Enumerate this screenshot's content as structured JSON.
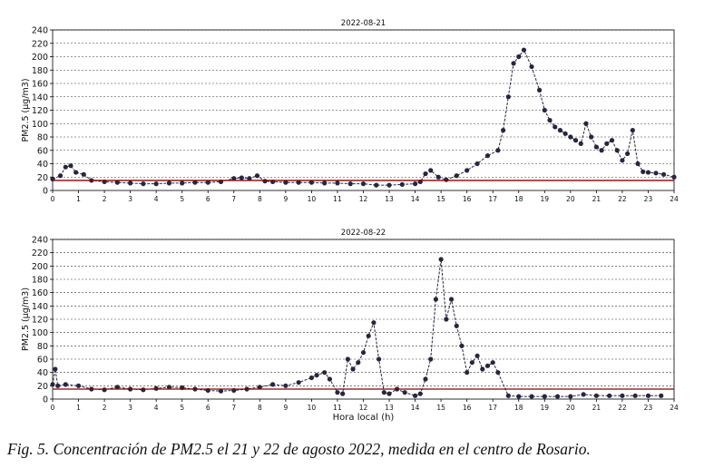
{
  "caption": "Fig. 5. Concentración de PM2.5 el 21 y 22 de agosto 2022, medida en el centro de Rosario.",
  "chart_data": [
    {
      "type": "line",
      "title": "2022-08-21",
      "xlabel": "Hora local (h)",
      "ylabel": "PM2.5 (µg/m3)",
      "xlim": [
        0,
        24
      ],
      "ylim": [
        0,
        240
      ],
      "xticks": [
        0,
        1,
        2,
        3,
        4,
        5,
        6,
        7,
        8,
        9,
        10,
        11,
        12,
        13,
        14,
        15,
        16,
        17,
        18,
        19,
        20,
        21,
        22,
        23,
        24
      ],
      "yticks": [
        0,
        20,
        40,
        60,
        80,
        100,
        120,
        140,
        160,
        180,
        200,
        220,
        240
      ],
      "grid": "horizontal dashed",
      "reference_line": 15,
      "series_color": "#262640",
      "reference_color": "#8b0000",
      "x": [
        0,
        0.3,
        0.5,
        0.7,
        0.9,
        1.2,
        1.5,
        2,
        2.5,
        3,
        3.5,
        4,
        4.5,
        5,
        5.5,
        6,
        6.5,
        7,
        7.3,
        7.6,
        7.9,
        8.2,
        8.5,
        9,
        9.5,
        10,
        10.5,
        11,
        11.5,
        12,
        12.5,
        13,
        13.5,
        14,
        14.2,
        14.4,
        14.6,
        14.9,
        15.2,
        15.6,
        16,
        16.4,
        16.8,
        17.2,
        17.4,
        17.6,
        17.8,
        18,
        18.2,
        18.5,
        18.8,
        19,
        19.2,
        19.4,
        19.6,
        19.8,
        20,
        20.2,
        20.4,
        20.6,
        20.8,
        21,
        21.2,
        21.4,
        21.6,
        21.8,
        22,
        22.2,
        22.4,
        22.6,
        22.8,
        23,
        23.3,
        23.6,
        24
      ],
      "y": [
        17,
        22,
        35,
        37,
        27,
        24,
        15,
        13,
        12,
        11,
        10,
        10,
        11,
        11,
        12,
        12,
        13,
        18,
        19,
        18,
        22,
        14,
        13,
        12,
        12,
        12,
        11,
        11,
        10,
        10,
        8,
        8,
        9,
        10,
        13,
        25,
        30,
        20,
        16,
        22,
        30,
        40,
        52,
        60,
        90,
        140,
        190,
        200,
        210,
        185,
        150,
        120,
        105,
        95,
        90,
        85,
        80,
        75,
        70,
        100,
        80,
        65,
        60,
        70,
        75,
        60,
        45,
        55,
        90,
        40,
        28,
        27,
        26,
        24,
        20
      ]
    },
    {
      "type": "line",
      "title": "2022-08-22",
      "xlabel": "Hora local (h)",
      "ylabel": "PM2.5 (µg/m3)",
      "xlim": [
        0,
        24
      ],
      "ylim": [
        0,
        240
      ],
      "xticks": [
        0,
        1,
        2,
        3,
        4,
        5,
        6,
        7,
        8,
        9,
        10,
        11,
        12,
        13,
        14,
        15,
        16,
        17,
        18,
        19,
        20,
        21,
        22,
        23,
        24
      ],
      "yticks": [
        0,
        20,
        40,
        60,
        80,
        100,
        120,
        140,
        160,
        180,
        200,
        220,
        240
      ],
      "grid": "horizontal dashed",
      "reference_line": 15,
      "series_color": "#262640",
      "reference_color": "#8b0000",
      "x": [
        0,
        0.1,
        0.2,
        0.5,
        1,
        1.5,
        2,
        2.5,
        3,
        3.5,
        4,
        4.5,
        5,
        5.5,
        6,
        6.5,
        7,
        7.5,
        8,
        8.5,
        9,
        9.5,
        10,
        10.2,
        10.5,
        10.7,
        11,
        11.2,
        11.4,
        11.6,
        11.8,
        12,
        12.2,
        12.4,
        12.6,
        12.8,
        13,
        13.3,
        13.6,
        14,
        14.2,
        14.4,
        14.6,
        14.8,
        15,
        15.2,
        15.4,
        15.6,
        15.8,
        16,
        16.2,
        16.4,
        16.6,
        16.8,
        17,
        17.2,
        17.6,
        18,
        18.5,
        19,
        19.5,
        20,
        20.5,
        21,
        21.5,
        22,
        22.5,
        23,
        23.5
      ],
      "y": [
        22,
        45,
        20,
        22,
        20,
        15,
        14,
        18,
        15,
        14,
        16,
        18,
        17,
        15,
        13,
        12,
        13,
        15,
        18,
        22,
        20,
        25,
        32,
        36,
        40,
        30,
        10,
        8,
        60,
        45,
        55,
        70,
        95,
        115,
        60,
        10,
        8,
        15,
        10,
        5,
        8,
        30,
        60,
        150,
        210,
        120,
        150,
        110,
        80,
        40,
        55,
        65,
        45,
        50,
        55,
        40,
        5,
        4,
        4,
        4,
        4,
        4,
        7,
        5,
        5,
        5,
        5,
        5,
        5
      ]
    }
  ]
}
